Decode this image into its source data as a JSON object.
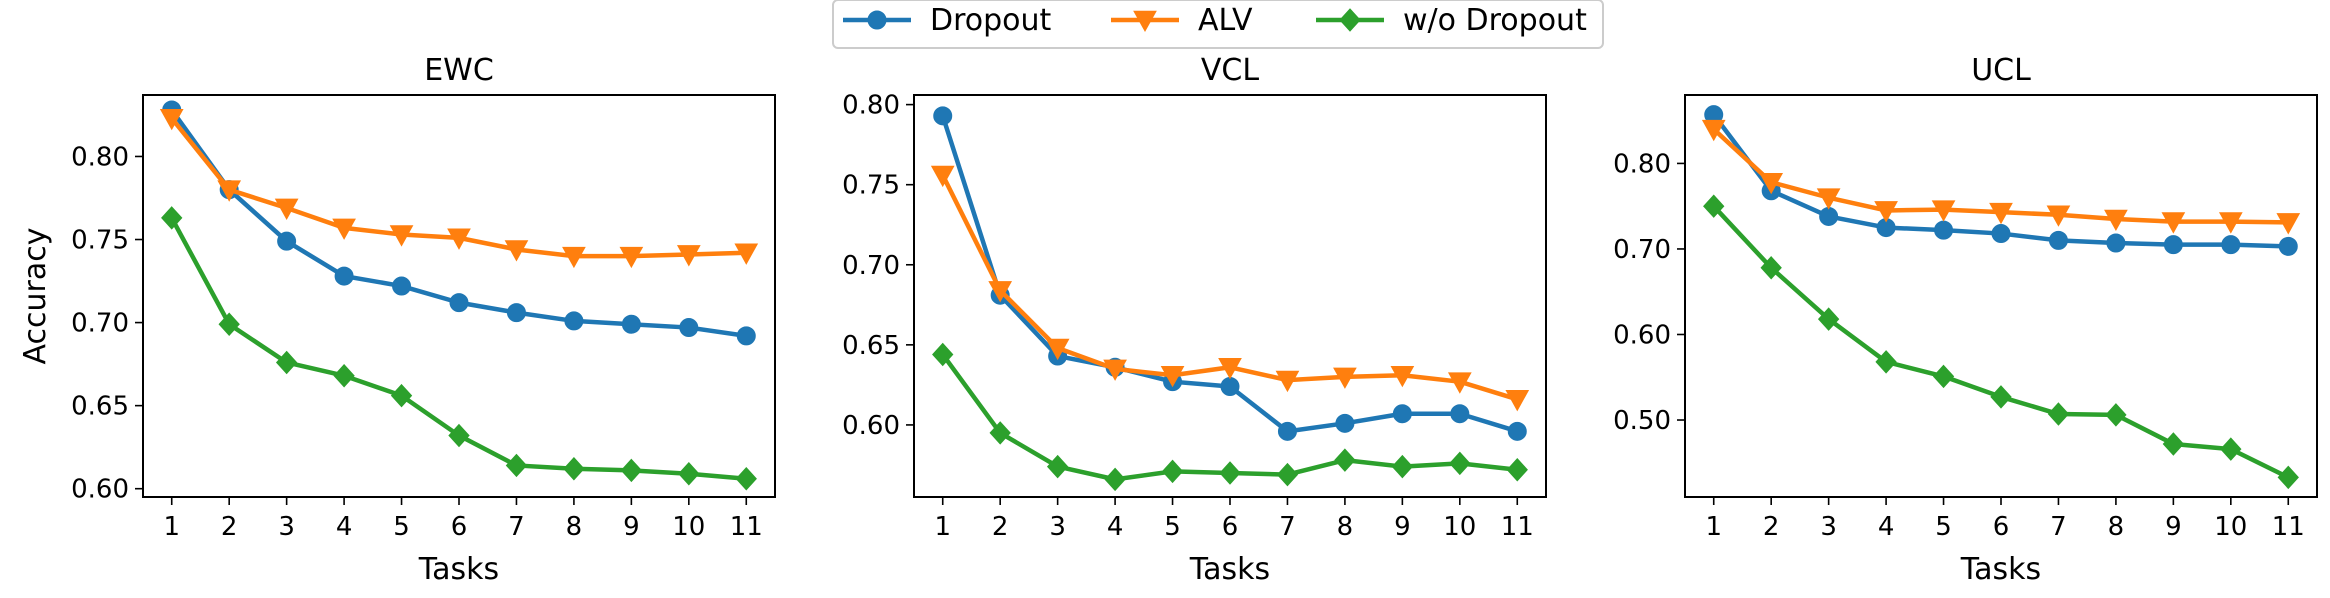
{
  "legend": {
    "placement": "top-center",
    "entries": [
      {
        "label": "Dropout",
        "color": "#1f77b4",
        "marker": "circle"
      },
      {
        "label": "ALV",
        "color": "#ff7f0e",
        "marker": "triangle-down"
      },
      {
        "label": "w/o Dropout",
        "color": "#2ca02c",
        "marker": "diamond"
      }
    ]
  },
  "chart_data": [
    {
      "type": "line",
      "title": "EWC",
      "xlabel": "Tasks",
      "ylabel": "Accuracy",
      "grid": false,
      "x": [
        1,
        2,
        3,
        4,
        5,
        6,
        7,
        8,
        9,
        10,
        11
      ],
      "ylim": [
        0.595,
        0.837
      ],
      "yticks": [
        0.6,
        0.65,
        0.7,
        0.75,
        0.8
      ],
      "ytick_labels": [
        "0.60",
        "0.65",
        "0.70",
        "0.75",
        "0.80"
      ],
      "series": [
        {
          "name": "Dropout",
          "color": "#1f77b4",
          "marker": "circle",
          "values": [
            0.828,
            0.78,
            0.749,
            0.728,
            0.722,
            0.712,
            0.706,
            0.701,
            0.699,
            0.697,
            0.692
          ]
        },
        {
          "name": "ALV",
          "color": "#ff7f0e",
          "marker": "triangle-down",
          "values": [
            0.823,
            0.78,
            0.769,
            0.757,
            0.753,
            0.751,
            0.744,
            0.74,
            0.74,
            0.741,
            0.742
          ]
        },
        {
          "name": "w/o Dropout",
          "color": "#2ca02c",
          "marker": "diamond",
          "values": [
            0.763,
            0.699,
            0.676,
            0.668,
            0.656,
            0.632,
            0.614,
            0.612,
            0.611,
            0.609,
            0.606
          ]
        }
      ]
    },
    {
      "type": "line",
      "title": "VCL",
      "xlabel": "Tasks",
      "ylabel": "",
      "grid": false,
      "x": [
        1,
        2,
        3,
        4,
        5,
        6,
        7,
        8,
        9,
        10,
        11
      ],
      "ylim": [
        0.555,
        0.806
      ],
      "yticks": [
        0.6,
        0.65,
        0.7,
        0.75,
        0.8
      ],
      "ytick_labels": [
        "0.60",
        "0.65",
        "0.70",
        "0.75",
        "0.80"
      ],
      "series": [
        {
          "name": "Dropout",
          "color": "#1f77b4",
          "marker": "circle",
          "values": [
            0.793,
            0.681,
            0.643,
            0.636,
            0.627,
            0.624,
            0.596,
            0.601,
            0.607,
            0.607,
            0.596
          ]
        },
        {
          "name": "ALV",
          "color": "#ff7f0e",
          "marker": "triangle-down",
          "values": [
            0.756,
            0.684,
            0.648,
            0.635,
            0.631,
            0.636,
            0.628,
            0.63,
            0.631,
            0.627,
            0.616
          ]
        },
        {
          "name": "w/o Dropout",
          "color": "#2ca02c",
          "marker": "diamond",
          "values": [
            0.644,
            0.595,
            0.574,
            0.566,
            0.571,
            0.57,
            0.569,
            0.578,
            0.574,
            0.576,
            0.572
          ]
        }
      ]
    },
    {
      "type": "line",
      "title": "UCL",
      "xlabel": "Tasks",
      "ylabel": "",
      "grid": false,
      "x": [
        1,
        2,
        3,
        4,
        5,
        6,
        7,
        8,
        9,
        10,
        11
      ],
      "ylim": [
        0.41,
        0.88
      ],
      "yticks": [
        0.5,
        0.6,
        0.7,
        0.8
      ],
      "ytick_labels": [
        "0.50",
        "0.60",
        "0.70",
        "0.80"
      ],
      "series": [
        {
          "name": "Dropout",
          "color": "#1f77b4",
          "marker": "circle",
          "values": [
            0.857,
            0.768,
            0.738,
            0.725,
            0.722,
            0.718,
            0.71,
            0.707,
            0.705,
            0.705,
            0.703
          ]
        },
        {
          "name": "ALV",
          "color": "#ff7f0e",
          "marker": "triangle-down",
          "values": [
            0.84,
            0.778,
            0.76,
            0.745,
            0.746,
            0.743,
            0.74,
            0.735,
            0.732,
            0.732,
            0.731
          ]
        },
        {
          "name": "w/o Dropout",
          "color": "#2ca02c",
          "marker": "diamond",
          "values": [
            0.75,
            0.678,
            0.618,
            0.568,
            0.551,
            0.527,
            0.507,
            0.506,
            0.472,
            0.466,
            0.433
          ]
        }
      ]
    }
  ]
}
